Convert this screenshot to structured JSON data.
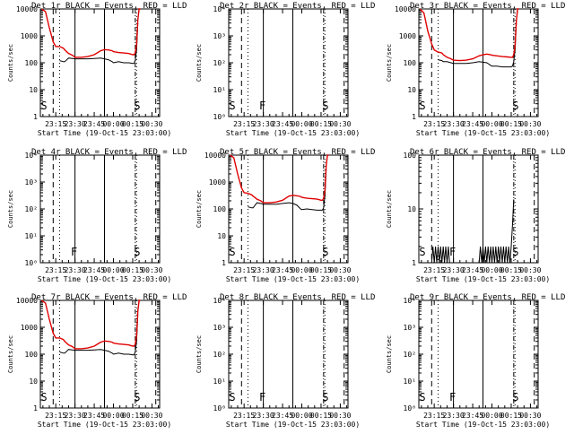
{
  "colors": {
    "events": "#000000",
    "lld": "#e00000",
    "axis": "#000000",
    "background": "#ffffff"
  },
  "x_ticks": [
    "23:15",
    "23:30",
    "23:45",
    "00:00",
    "00:15",
    "00:30"
  ],
  "xlabel": "Start Time (19-Oct-15 23:03:00)",
  "ylabel": "Counts/sec",
  "chart_data": [
    {
      "type": "line",
      "title": "Det 1r BLACK = Events, RED = LLD",
      "y_scale": "log",
      "ylim": [
        1,
        10000
      ],
      "y_ticks": [
        "1",
        "10",
        "100",
        "1000",
        "10000"
      ],
      "x": [
        "23:04",
        "23:07",
        "23:10",
        "23:13",
        "23:15",
        "23:18",
        "23:21",
        "23:22",
        "23:25",
        "23:28",
        "23:30",
        "23:35",
        "23:40",
        "23:45",
        "23:50",
        "23:53",
        "23:56",
        "23:59",
        "00:00",
        "00:04",
        "00:08",
        "00:12",
        "00:15",
        "00:16",
        "00:17",
        "00:18",
        "00:19",
        "00:20",
        "00:21"
      ],
      "series": [
        {
          "name": "Events",
          "color": "#000000",
          "values": [
            null,
            null,
            null,
            null,
            null,
            120,
            110,
            110,
            150,
            145,
            140,
            140,
            140,
            145,
            150,
            140,
            130,
            110,
            100,
            110,
            100,
            100,
            95,
            95,
            120,
            300,
            3000,
            null,
            null
          ]
        },
        {
          "name": "LLD",
          "color": "#e00000",
          "values": [
            10000,
            8000,
            2000,
            600,
            400,
            400,
            350,
            300,
            220,
            190,
            160,
            160,
            170,
            200,
            280,
            310,
            300,
            280,
            260,
            240,
            230,
            220,
            200,
            200,
            230,
            500,
            4000,
            10000,
            10000
          ]
        }
      ],
      "markers": [
        {
          "label": "S",
          "time": "23:04"
        },
        {
          "label": "S",
          "time": "00:17"
        }
      ]
    },
    {
      "type": "line",
      "title": "Det 2r BLACK = Events, RED = LLD",
      "y_scale": "log",
      "ylim": [
        1,
        10000
      ],
      "y_ticks": [
        "10⁰",
        "10¹",
        "10²",
        "10³",
        "10⁴"
      ],
      "series": [],
      "markers": [
        {
          "label": "S",
          "time": "23:04"
        },
        {
          "label": "F",
          "time": "23:30"
        },
        {
          "label": "S",
          "time": "00:17"
        }
      ]
    },
    {
      "type": "line",
      "title": "Det 3r BLACK = Events, RED = LLD",
      "y_scale": "log",
      "ylim": [
        1,
        10000
      ],
      "y_ticks": [
        "1",
        "10",
        "100",
        "1000",
        "10000"
      ],
      "x": [
        "23:04",
        "23:07",
        "23:10",
        "23:13",
        "23:15",
        "23:18",
        "23:21",
        "23:22",
        "23:25",
        "23:28",
        "23:30",
        "23:35",
        "23:40",
        "23:45",
        "23:50",
        "23:53",
        "23:56",
        "23:59",
        "00:00",
        "00:04",
        "00:08",
        "00:12",
        "00:15",
        "00:16",
        "00:17",
        "00:18",
        "00:19",
        "00:20",
        "00:21"
      ],
      "series": [
        {
          "name": "Events",
          "color": "#000000",
          "values": [
            null,
            null,
            null,
            null,
            null,
            130,
            120,
            110,
            110,
            100,
            95,
            95,
            95,
            100,
            110,
            105,
            100,
            80,
            75,
            75,
            70,
            70,
            70,
            75,
            110,
            300,
            3000,
            null,
            null
          ]
        },
        {
          "name": "LLD",
          "color": "#e00000",
          "values": [
            10000,
            7000,
            1500,
            500,
            300,
            250,
            230,
            200,
            160,
            140,
            125,
            120,
            125,
            140,
            180,
            200,
            210,
            200,
            190,
            180,
            170,
            165,
            160,
            160,
            200,
            450,
            3500,
            10000,
            10000
          ]
        }
      ],
      "markers": [
        {
          "label": "S",
          "time": "23:04"
        },
        {
          "label": "S",
          "time": "00:17"
        }
      ]
    },
    {
      "type": "line",
      "title": "Det 4r BLACK = Events, RED = LLD",
      "y_scale": "log",
      "ylim": [
        1,
        10000
      ],
      "y_ticks": [
        "10⁰",
        "10¹",
        "10²",
        "10³",
        "10⁴"
      ],
      "series": [],
      "markers": [
        {
          "label": "F",
          "time": "23:30"
        },
        {
          "label": "S",
          "time": "00:17"
        }
      ]
    },
    {
      "type": "line",
      "title": "Det 5r BLACK = Events, RED = LLD",
      "y_scale": "log",
      "ylim": [
        1,
        10000
      ],
      "y_ticks": [
        "1",
        "10",
        "100",
        "1000",
        "10000"
      ],
      "x": [
        "23:04",
        "23:07",
        "23:10",
        "23:13",
        "23:15",
        "23:18",
        "23:21",
        "23:22",
        "23:25",
        "23:28",
        "23:30",
        "23:35",
        "23:40",
        "23:45",
        "23:50",
        "23:53",
        "23:56",
        "23:59",
        "00:00",
        "00:04",
        "00:08",
        "00:12",
        "00:15",
        "00:16",
        "00:17",
        "00:18",
        "00:19",
        "00:20",
        "00:21"
      ],
      "series": [
        {
          "name": "Events",
          "color": "#000000",
          "values": [
            null,
            null,
            null,
            null,
            null,
            120,
            110,
            110,
            170,
            160,
            150,
            150,
            150,
            160,
            170,
            160,
            140,
            100,
            95,
            100,
            95,
            90,
            90,
            90,
            110,
            300,
            3000,
            null,
            null
          ]
        },
        {
          "name": "LLD",
          "color": "#e00000",
          "values": [
            10000,
            8000,
            2000,
            600,
            400,
            380,
            330,
            300,
            230,
            200,
            170,
            170,
            180,
            210,
            300,
            320,
            310,
            290,
            270,
            250,
            240,
            230,
            210,
            210,
            240,
            500,
            4000,
            10000,
            10000
          ]
        }
      ],
      "markers": [
        {
          "label": "S",
          "time": "23:04"
        },
        {
          "label": "S",
          "time": "00:17"
        }
      ]
    },
    {
      "type": "line",
      "title": "Det 6r BLACK = Events, RED = LLD",
      "y_scale": "log",
      "ylim": [
        1,
        100
      ],
      "y_ticks": [
        "1",
        "10",
        "100"
      ],
      "x": [
        "23:13",
        "23:14",
        "23:15",
        "23:16",
        "23:17",
        "23:18",
        "23:19",
        "23:20",
        "23:21",
        "23:22",
        "23:23",
        "23:24",
        "23:25",
        "23:26",
        "23:27",
        "23:50",
        "23:51",
        "23:52",
        "23:53",
        "23:54",
        "23:55",
        "23:56",
        "23:57",
        "23:58",
        "23:59",
        "00:00",
        "00:01",
        "00:02",
        "00:03",
        "00:04",
        "00:05",
        "00:06",
        "00:07",
        "00:08",
        "00:09",
        "00:10",
        "00:11",
        "00:12",
        "00:13",
        "00:14",
        "00:15",
        "00:16",
        "00:17"
      ],
      "series": [
        {
          "name": "Events",
          "color": "#000000",
          "values": [
            1,
            2,
            1,
            2,
            1,
            2,
            1,
            2,
            1,
            2,
            1,
            2,
            1,
            2,
            1,
            1,
            2,
            1,
            2,
            1,
            2,
            1,
            2,
            1,
            2,
            1,
            2,
            1,
            2,
            1,
            2,
            1,
            2,
            1,
            2,
            1,
            2,
            1,
            2,
            1,
            2,
            5,
            15
          ]
        }
      ],
      "markers": [
        {
          "label": "S",
          "time": "23:04"
        },
        {
          "label": "F",
          "time": "23:30"
        },
        {
          "label": "S",
          "time": "00:17"
        }
      ]
    },
    {
      "type": "line",
      "title": "Det 7r BLACK = Events, RED = LLD",
      "y_scale": "log",
      "ylim": [
        1,
        10000
      ],
      "y_ticks": [
        "1",
        "10",
        "100",
        "1000",
        "10000"
      ],
      "x": [
        "23:04",
        "23:07",
        "23:10",
        "23:13",
        "23:15",
        "23:18",
        "23:21",
        "23:22",
        "23:25",
        "23:28",
        "23:30",
        "23:35",
        "23:40",
        "23:45",
        "23:50",
        "23:53",
        "23:56",
        "23:59",
        "00:00",
        "00:04",
        "00:08",
        "00:12",
        "00:15",
        "00:16",
        "00:17",
        "00:18",
        "00:19",
        "00:20",
        "00:21"
      ],
      "series": [
        {
          "name": "Events",
          "color": "#000000",
          "values": [
            null,
            null,
            null,
            null,
            null,
            120,
            110,
            110,
            150,
            145,
            140,
            140,
            140,
            145,
            150,
            140,
            130,
            110,
            100,
            110,
            100,
            100,
            95,
            95,
            120,
            300,
            3000,
            null,
            null
          ]
        },
        {
          "name": "LLD",
          "color": "#e00000",
          "values": [
            10000,
            8000,
            2000,
            600,
            400,
            400,
            350,
            300,
            220,
            190,
            160,
            160,
            170,
            200,
            280,
            310,
            300,
            280,
            260,
            240,
            230,
            220,
            200,
            200,
            230,
            500,
            4000,
            10000,
            10000
          ]
        }
      ],
      "markers": [
        {
          "label": "S",
          "time": "23:04"
        },
        {
          "label": "S",
          "time": "00:17"
        }
      ]
    },
    {
      "type": "line",
      "title": "Det 8r BLACK = Events, RED = LLD",
      "y_scale": "log",
      "ylim": [
        1,
        10000
      ],
      "y_ticks": [
        "10⁰",
        "10¹",
        "10²",
        "10³",
        "10⁴"
      ],
      "series": [],
      "markers": [
        {
          "label": "S",
          "time": "23:04"
        },
        {
          "label": "F",
          "time": "23:30"
        },
        {
          "label": "S",
          "time": "00:17"
        }
      ]
    },
    {
      "type": "line",
      "title": "Det 9r BLACK = Events, RED = LLD",
      "y_scale": "log",
      "ylim": [
        1,
        10000
      ],
      "y_ticks": [
        "10⁰",
        "10¹",
        "10²",
        "10³",
        "10⁴"
      ],
      "series": [],
      "markers": [
        {
          "label": "S",
          "time": "23:04"
        },
        {
          "label": "F",
          "time": "23:30"
        },
        {
          "label": "S",
          "time": "00:17"
        }
      ]
    }
  ]
}
